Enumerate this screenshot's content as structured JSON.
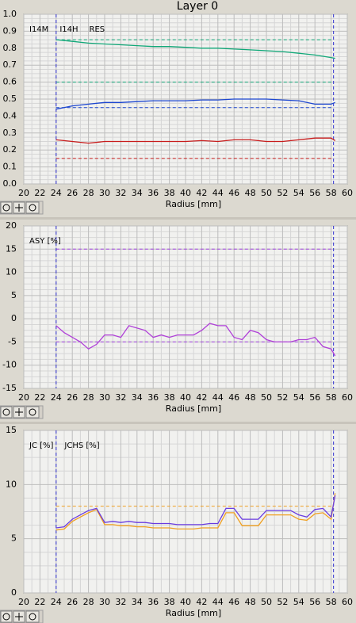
{
  "title": "Layer 0",
  "chart_data": [
    {
      "type": "line",
      "xlabel": "Radius [mm]",
      "grid": true,
      "xlim": [
        20,
        60
      ],
      "ylim": [
        0,
        1
      ],
      "xticks": [
        20,
        22,
        24,
        26,
        28,
        30,
        32,
        34,
        36,
        38,
        40,
        42,
        44,
        46,
        48,
        50,
        52,
        54,
        56,
        58,
        60
      ],
      "yticks": [
        {
          "value": 0,
          "label": "0.0"
        },
        0.1,
        0.2,
        0.3,
        0.4,
        0.5,
        0.6,
        0.7,
        0.8,
        0.9,
        {
          "value": 1,
          "label": "1.0"
        }
      ],
      "vlines": [
        24,
        58.3
      ],
      "hlines": [
        {
          "value": 0.85,
          "color": "#10a878"
        },
        {
          "value": 0.6,
          "color": "#10a878"
        },
        {
          "value": 0.45,
          "color": "#1c46d0"
        },
        {
          "value": 0.15,
          "color": "#c81c1c"
        }
      ],
      "x": [
        24,
        26,
        28,
        30,
        32,
        34,
        36,
        38,
        40,
        42,
        44,
        46,
        48,
        50,
        52,
        54,
        56,
        58,
        58.5
      ],
      "series": [
        {
          "name": "I14M",
          "color": "#10a878",
          "values": [
            0.85,
            0.84,
            0.83,
            0.825,
            0.82,
            0.815,
            0.81,
            0.81,
            0.805,
            0.8,
            0.8,
            0.795,
            0.79,
            0.785,
            0.78,
            0.77,
            0.76,
            0.745,
            0.74
          ]
        },
        {
          "name": "I14H",
          "color": "#1c46d0",
          "values": [
            0.44,
            0.46,
            0.47,
            0.48,
            0.48,
            0.485,
            0.49,
            0.49,
            0.49,
            0.495,
            0.495,
            0.5,
            0.5,
            0.5,
            0.495,
            0.49,
            0.47,
            0.47,
            0.48
          ]
        },
        {
          "name": "RES",
          "color": "#c81c1c",
          "values": [
            0.26,
            0.25,
            0.24,
            0.25,
            0.25,
            0.25,
            0.25,
            0.25,
            0.25,
            0.255,
            0.25,
            0.26,
            0.26,
            0.25,
            0.25,
            0.26,
            0.27,
            0.27,
            0.255
          ]
        }
      ]
    },
    {
      "type": "line",
      "xlabel": "Radius [mm]",
      "grid": true,
      "xlim": [
        20,
        60
      ],
      "ylim": [
        -15,
        20
      ],
      "xticks": [
        20,
        22,
        24,
        26,
        28,
        30,
        32,
        34,
        36,
        38,
        40,
        42,
        44,
        46,
        48,
        50,
        52,
        54,
        56,
        58,
        60
      ],
      "yticks": [
        -15,
        -10,
        -5,
        0,
        5,
        10,
        15,
        20
      ],
      "vlines": [
        24,
        58.3
      ],
      "hlines": [
        {
          "value": 15,
          "color": "#a040e0"
        },
        {
          "value": -5,
          "color": "#a040e0"
        }
      ],
      "x": [
        24,
        25,
        26,
        27,
        28,
        29,
        30,
        31,
        32,
        33,
        34,
        35,
        36,
        37,
        38,
        39,
        40,
        41,
        42,
        43,
        44,
        45,
        46,
        47,
        48,
        49,
        50,
        51,
        52,
        53,
        54,
        55,
        56,
        57,
        58,
        58.5
      ],
      "series": [
        {
          "name": "ASY [%]",
          "color": "#b040d8",
          "values": [
            -1.5,
            -3,
            -4,
            -5,
            -6.5,
            -5.5,
            -3.5,
            -3.5,
            -4,
            -1.5,
            -2,
            -2.5,
            -4,
            -3.5,
            -4,
            -3.5,
            -3.5,
            -3.5,
            -2.5,
            -1,
            -1.5,
            -1.5,
            -4,
            -4.5,
            -2.5,
            -3,
            -4.5,
            -5,
            -5,
            -5,
            -4.5,
            -4.5,
            -4,
            -6,
            -6.5,
            -8
          ]
        }
      ]
    },
    {
      "type": "line",
      "xlabel": "Radius [mm]",
      "grid": true,
      "xlim": [
        20,
        60
      ],
      "ylim": [
        0,
        15
      ],
      "xticks": [
        20,
        22,
        24,
        26,
        28,
        30,
        32,
        34,
        36,
        38,
        40,
        42,
        44,
        46,
        48,
        50,
        52,
        54,
        56,
        58,
        60
      ],
      "yticks": [
        0,
        5,
        10,
        15
      ],
      "vlines": [
        24,
        58.3
      ],
      "hlines": [
        {
          "value": 8,
          "color": "#f0a020"
        }
      ],
      "x": [
        24,
        25,
        26,
        27,
        28,
        29,
        30,
        31,
        32,
        33,
        34,
        35,
        36,
        37,
        38,
        39,
        40,
        41,
        42,
        43,
        44,
        45,
        46,
        47,
        48,
        49,
        50,
        51,
        52,
        53,
        54,
        55,
        56,
        57,
        58,
        58.5
      ],
      "series": [
        {
          "name": "JC [%]",
          "color": "#f0a020",
          "values": [
            5.8,
            5.9,
            6.6,
            7.0,
            7.4,
            7.7,
            6.3,
            6.3,
            6.2,
            6.2,
            6.1,
            6.1,
            6.0,
            6.0,
            6.0,
            5.9,
            5.9,
            5.9,
            6.0,
            6.0,
            6.0,
            7.4,
            7.4,
            6.2,
            6.2,
            6.2,
            7.2,
            7.2,
            7.2,
            7.2,
            6.8,
            6.7,
            7.3,
            7.4,
            6.8,
            9.2
          ]
        },
        {
          "name": "JCHS [%]",
          "color": "#6a3ce0",
          "values": [
            6.0,
            6.1,
            6.8,
            7.2,
            7.6,
            7.8,
            6.5,
            6.6,
            6.5,
            6.6,
            6.5,
            6.5,
            6.4,
            6.4,
            6.4,
            6.3,
            6.3,
            6.3,
            6.3,
            6.4,
            6.4,
            7.8,
            7.8,
            6.8,
            6.8,
            6.8,
            7.6,
            7.6,
            7.6,
            7.6,
            7.2,
            7.0,
            7.7,
            7.8,
            7.0,
            9.0
          ]
        }
      ]
    }
  ]
}
